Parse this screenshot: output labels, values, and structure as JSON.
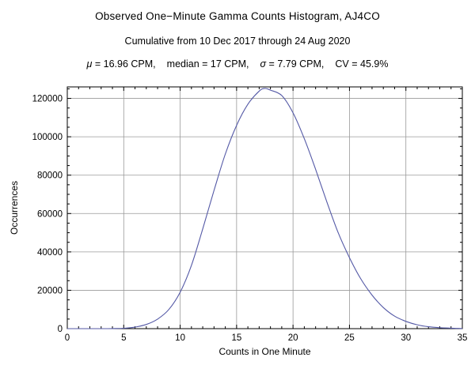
{
  "chart_data": {
    "type": "line",
    "title": "Observed One−Minute Gamma Counts Histogram, AJ4CO",
    "subtitle": "Cumulative from 10 Dec 2017 through 24 Aug 2020",
    "stats": {
      "mu_symbol": "μ",
      "mu_rest": " = 16.96 CPM,",
      "median": "median = 17 CPM,",
      "sigma_symbol": "σ",
      "sigma_rest": " = 7.79 CPM,",
      "cv": "CV = 45.9%"
    },
    "xlabel": "Counts in One Minute",
    "ylabel": "Occurrences",
    "xlim": [
      0,
      35
    ],
    "ylim": [
      0,
      126000
    ],
    "xticks": [
      0,
      5,
      10,
      15,
      20,
      25,
      30,
      35
    ],
    "yticks": [
      0,
      20000,
      40000,
      60000,
      80000,
      100000,
      120000
    ],
    "x_minor_step": 1,
    "y_minor_step": 5000,
    "grid": true,
    "legend": "none",
    "line_color": "#5459A6",
    "grid_color": "#999999",
    "frame_color": "#000000",
    "series": [
      {
        "name": "occurrences",
        "x": [
          0,
          1,
          2,
          3,
          4,
          5,
          6,
          7,
          8,
          9,
          10,
          11,
          12,
          13,
          14,
          15,
          16,
          17,
          17.5,
          18,
          19,
          20,
          21,
          22,
          23,
          24,
          25,
          26,
          27,
          28,
          29,
          30,
          31,
          32,
          33,
          34,
          35
        ],
        "y": [
          0,
          0,
          0,
          0,
          50,
          200,
          800,
          2200,
          5000,
          10000,
          19000,
          33000,
          52000,
          72000,
          91000,
          106000,
          117000,
          123800,
          125200,
          124300,
          121500,
          112500,
          99000,
          83000,
          66000,
          50000,
          37000,
          26000,
          17500,
          11000,
          6500,
          3800,
          2000,
          1000,
          500,
          250,
          100
        ]
      }
    ]
  }
}
